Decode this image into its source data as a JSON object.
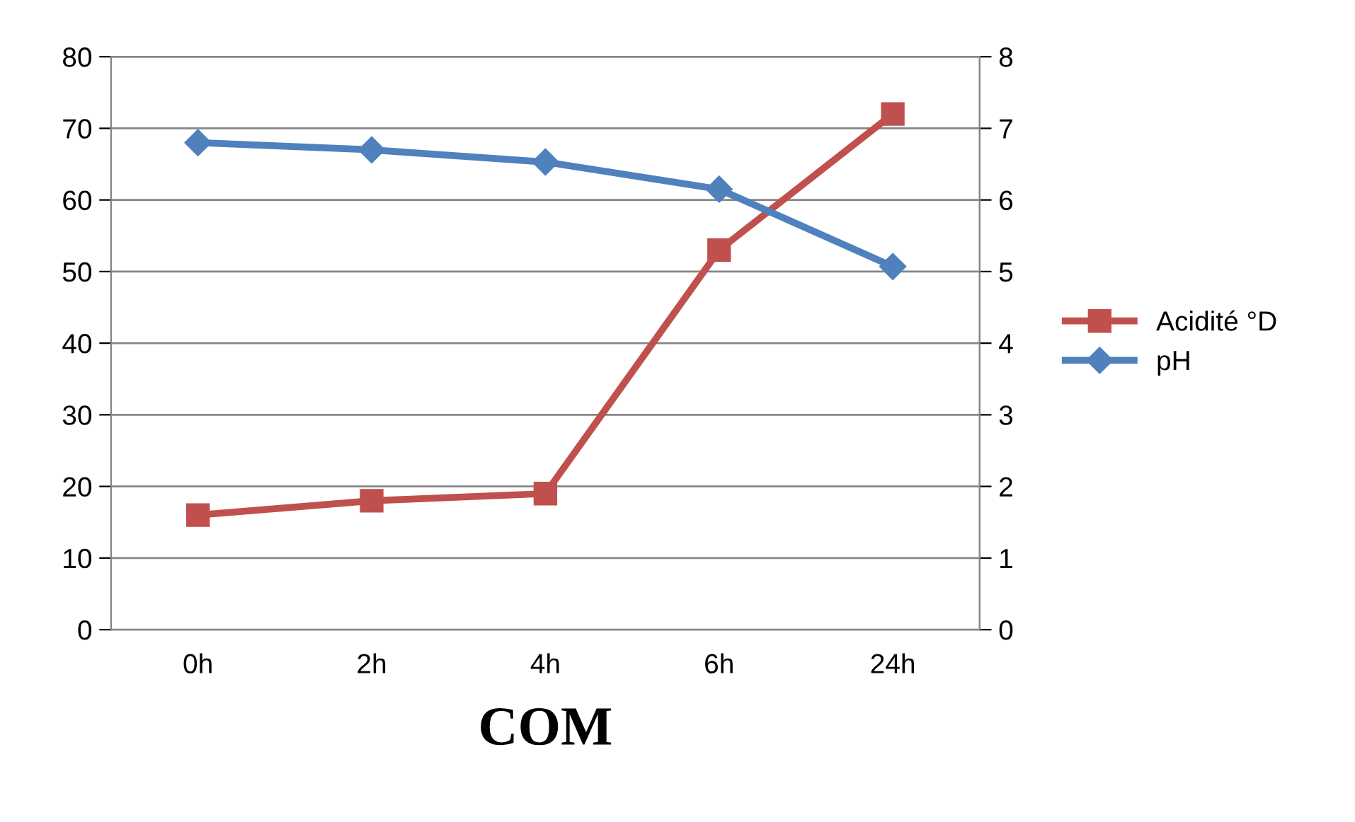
{
  "chart_data": {
    "type": "line",
    "xlabel": "COM",
    "categories": [
      "0h",
      "2h",
      "4h",
      "6h",
      "24h"
    ],
    "series": [
      {
        "name": "Acidité °D",
        "color": "#c0504d",
        "values": [
          16,
          18,
          19,
          53,
          72
        ],
        "marker": "square"
      },
      {
        "name": "pH",
        "color": "#4f81bd",
        "values": [
          6.8,
          6.7,
          6.53,
          6.15,
          5.07
        ],
        "marker": "diamond",
        "axis": "y2"
      }
    ],
    "ylim": [
      0,
      80
    ],
    "yticks": [
      0,
      10,
      20,
      30,
      40,
      50,
      60,
      70,
      80
    ],
    "y2lim": [
      0,
      8
    ],
    "y2ticks": [
      0,
      1,
      2,
      3,
      4,
      5,
      6,
      7,
      8
    ],
    "grid": "y",
    "legend": "right"
  }
}
